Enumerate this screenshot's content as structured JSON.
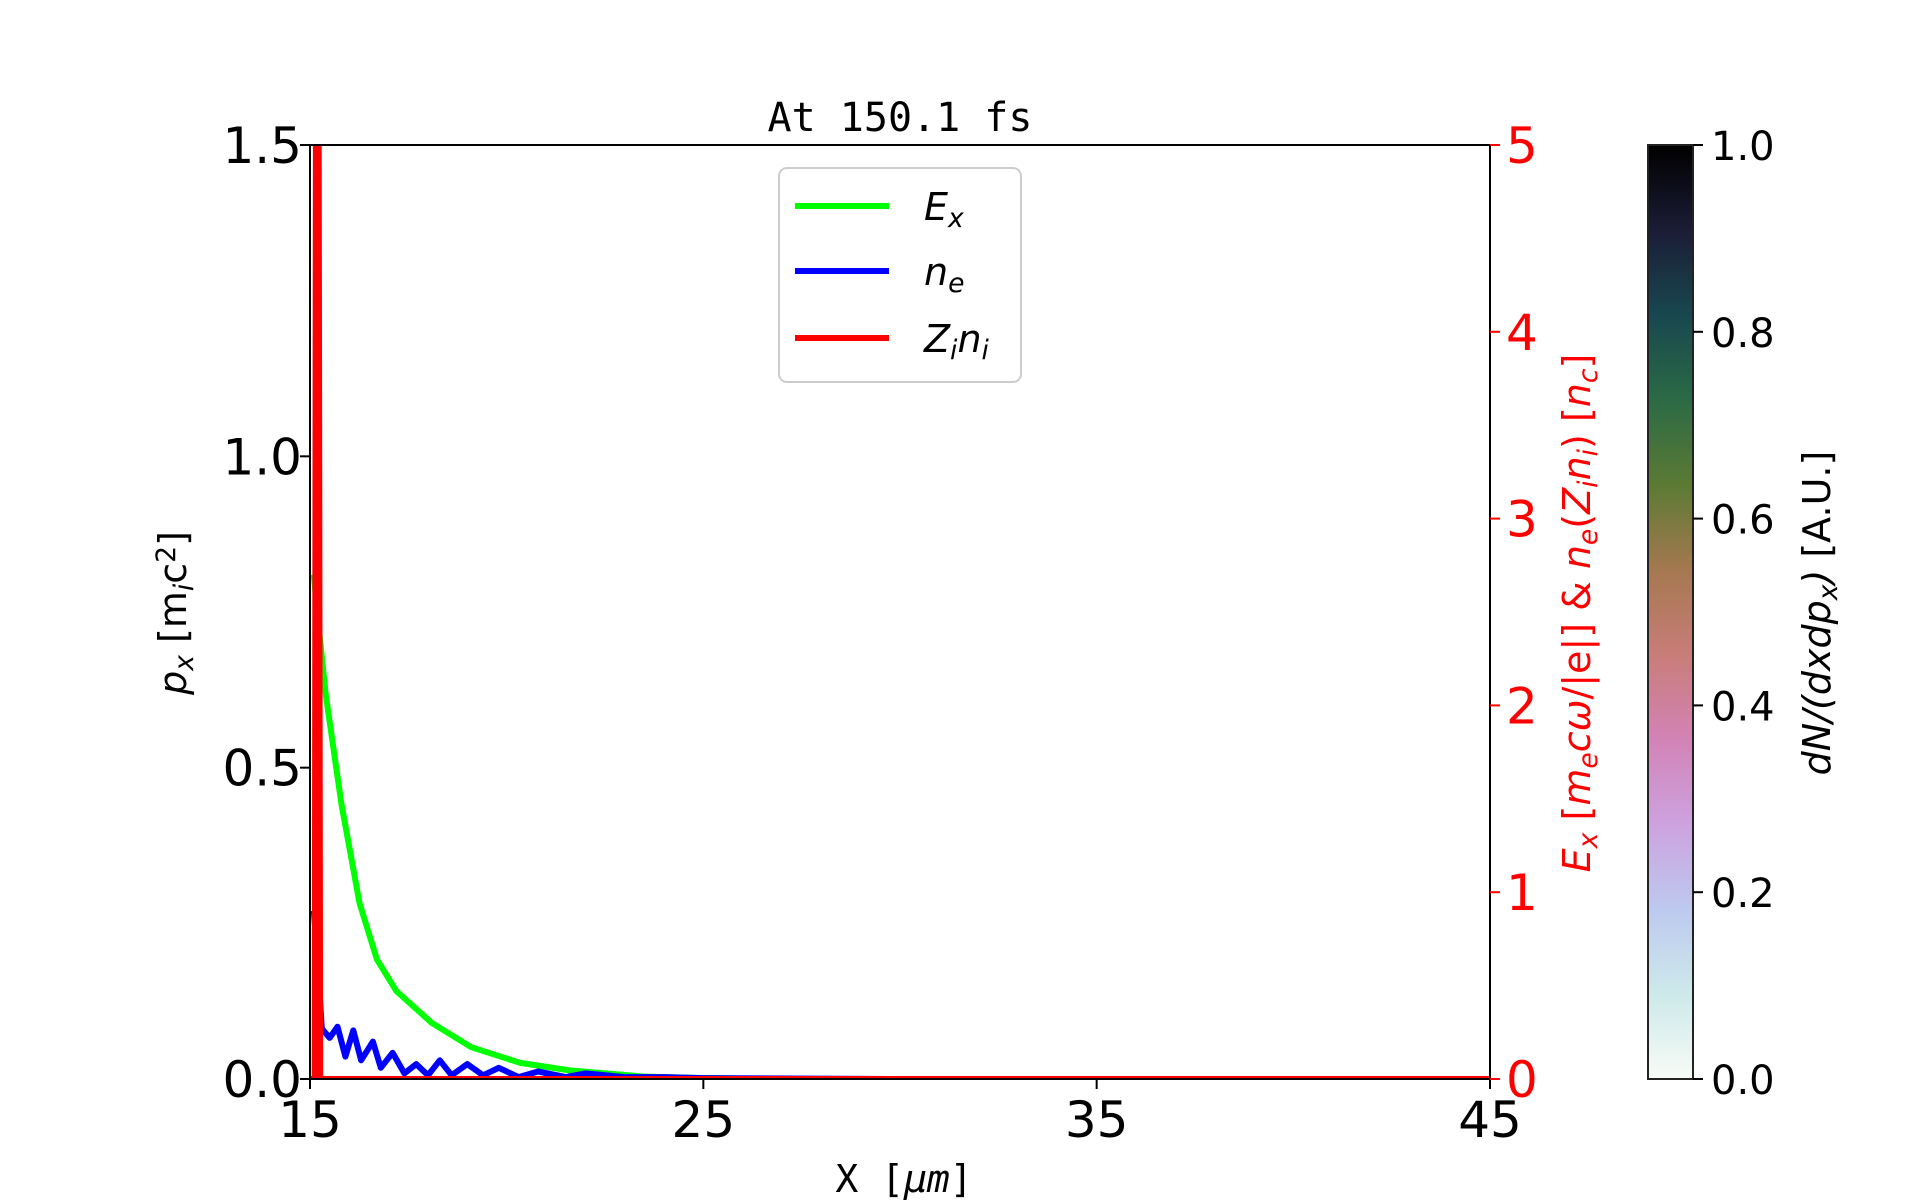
{
  "chart_data": {
    "type": "line",
    "title": "At 150.1 fs",
    "xlabel": [
      {
        "t": "X  ["
      },
      {
        "t": "μm",
        "i": true
      },
      {
        "t": "]"
      }
    ],
    "ylabel_left": [
      {
        "t": "p",
        "i": true
      },
      {
        "t": "x",
        "sub": true,
        "i": true
      },
      {
        "t": "  [m"
      },
      {
        "t": "i",
        "sub": true,
        "i": true
      },
      {
        "t": "c"
      },
      {
        "t": "2",
        "sup": true
      },
      {
        "t": "]"
      }
    ],
    "ylabel_right": [
      {
        "t": "E",
        "i": true
      },
      {
        "t": "x",
        "sub": true,
        "i": true
      },
      {
        "t": "  ["
      },
      {
        "t": "m",
        "i": true
      },
      {
        "t": "e",
        "sub": true,
        "i": true
      },
      {
        "t": "cω",
        "i": true
      },
      {
        "t": "/|e|]  &  "
      },
      {
        "t": "n",
        "i": true
      },
      {
        "t": "e",
        "sub": true,
        "i": true
      },
      {
        "t": "("
      },
      {
        "t": "Z",
        "i": true
      },
      {
        "t": "i",
        "sub": true,
        "i": true
      },
      {
        "t": "n",
        "i": true
      },
      {
        "t": "i",
        "sub": true,
        "i": true
      },
      {
        "t": ")  ["
      },
      {
        "t": "n",
        "i": true
      },
      {
        "t": "c",
        "sub": true,
        "i": true
      },
      {
        "t": "]"
      }
    ],
    "colorbar_label": [
      {
        "t": "dN/(dxdp",
        "i": true
      },
      {
        "t": "x",
        "sub": true,
        "i": true
      },
      {
        "t": ")",
        "i": true
      },
      {
        "t": "  [A.U.]"
      }
    ],
    "xlim": [
      15,
      45
    ],
    "xticks": [
      "15",
      "25",
      "35",
      "45"
    ],
    "ylim_left": [
      0,
      1.5
    ],
    "yticks_left": [
      "0.0",
      "0.5",
      "1.0",
      "1.5"
    ],
    "ylim_right": [
      0,
      5
    ],
    "yticks_right": [
      "0",
      "1",
      "2",
      "3",
      "4",
      "5"
    ],
    "right_axis_color": "#ff0000",
    "colorbar": {
      "range": [
        0,
        1
      ],
      "ticks": [
        "0.0",
        "0.2",
        "0.4",
        "0.6",
        "0.8",
        "1.0"
      ],
      "colormap": [
        "#f7fbf6",
        "#cde9ea",
        "#bdc9ef",
        "#cda2df",
        "#d283b6",
        "#c87d78",
        "#a57850",
        "#5b7a34",
        "#2b6a45",
        "#18474f",
        "#1b1c35",
        "#000000"
      ]
    },
    "grid": false,
    "legend": {
      "placement": "top-center",
      "entries": [
        [
          {
            "t": "E",
            "i": true
          },
          {
            "t": "x",
            "sub": true,
            "i": true
          }
        ],
        [
          {
            "t": "n",
            "i": true
          },
          {
            "t": "e",
            "sub": true,
            "i": true
          }
        ],
        [
          {
            "t": "Z",
            "i": true
          },
          {
            "t": "i",
            "sub": true,
            "i": true
          },
          {
            "t": "n",
            "i": true
          },
          {
            "t": "i",
            "sub": true,
            "i": true
          }
        ]
      ]
    },
    "series": [
      {
        "key": "Ex",
        "color": "#00ff00",
        "axis": "right",
        "x": [
          15.1,
          15.16,
          15.4,
          15.8,
          16.26,
          16.7,
          17.2,
          18.1,
          19.1,
          20.35,
          21.6,
          23.5,
          25.1,
          27,
          45
        ],
        "y": [
          2.7,
          2.55,
          2.06,
          1.47,
          0.94,
          0.64,
          0.47,
          0.3,
          0.17,
          0.086,
          0.046,
          0.013,
          0.005,
          0.0,
          0.0
        ]
      },
      {
        "key": "ne",
        "color": "#0000ff",
        "axis": "right",
        "x": [
          15.1,
          15.2,
          15.3,
          15.5,
          15.7,
          15.9,
          16.1,
          16.3,
          16.6,
          16.8,
          17.1,
          17.4,
          17.7,
          18.0,
          18.3,
          18.6,
          19.0,
          19.4,
          19.8,
          20.3,
          20.8,
          21.5,
          22.0,
          23.0,
          24.0,
          25.0,
          30.0,
          45.0
        ],
        "y": [
          0.9,
          0.6,
          0.27,
          0.22,
          0.28,
          0.12,
          0.26,
          0.1,
          0.2,
          0.06,
          0.14,
          0.03,
          0.08,
          0.02,
          0.1,
          0.02,
          0.08,
          0.02,
          0.06,
          0.01,
          0.04,
          0.01,
          0.03,
          0.01,
          0.01,
          0.005,
          0.0,
          0.0
        ]
      },
      {
        "key": "Zini",
        "color": "#ff0000",
        "axis": "right",
        "x": [
          15.0,
          15.12,
          15.15,
          15.22,
          15.26,
          45.0
        ],
        "y": [
          0.0,
          0.0,
          5.0,
          5.0,
          0.0,
          0.0
        ]
      }
    ]
  }
}
